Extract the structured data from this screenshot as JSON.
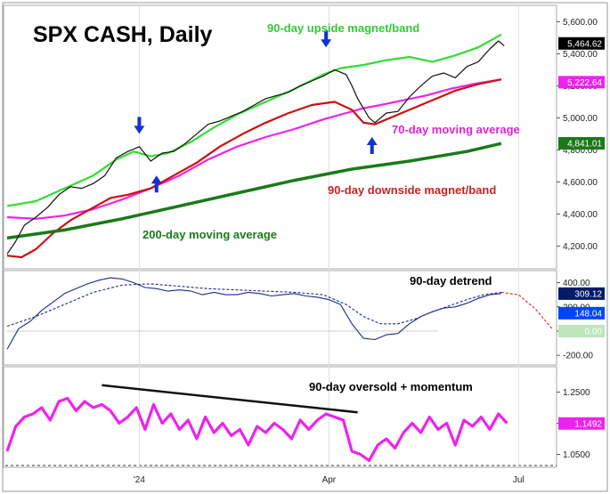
{
  "chart_data": [
    {
      "type": "line",
      "panel": "price",
      "title": "SPX CASH, Daily",
      "ylim": [
        4080,
        5680
      ],
      "yticks": [
        "5,600.00",
        "5,400.00",
        "5,200.00",
        "5,000.00",
        "4,800.00",
        "4,600.00",
        "4,400.00",
        "4,200.00"
      ],
      "ytick_values": [
        5600,
        5400,
        5200,
        5000,
        4800,
        4600,
        4400,
        4200
      ],
      "xlim": [
        0,
        190
      ],
      "x_labels": [
        {
          "x": 46,
          "label": "'24"
        },
        {
          "x": 112,
          "label": "Apr"
        },
        {
          "x": 178,
          "label": "Jul"
        }
      ],
      "price_tags": [
        {
          "text": "5,464.62",
          "value": 5464.62,
          "color": "#000000",
          "text_color": "#ffffff"
        },
        {
          "text": "5,222.64",
          "value": 5222.64,
          "color": "#ee22ee",
          "text_color": "#ffffff"
        },
        {
          "text": "4,841.01",
          "value": 4841.01,
          "color": "#1a7a1a",
          "text_color": "#ffffff"
        }
      ],
      "annotations": [
        {
          "text": "90-day upside magnet/band",
          "color": "#33cc33"
        },
        {
          "text": "70-day moving average",
          "color": "#dd22dd"
        },
        {
          "text": "90-day downside magnet/band",
          "color": "#cc2222"
        },
        {
          "text": "200-day moving average",
          "color": "#1a7a1a"
        }
      ],
      "arrows": [
        {
          "x": 46,
          "direction": "down",
          "price": 4900
        },
        {
          "x": 52,
          "direction": "up",
          "price": 4640
        },
        {
          "x": 111,
          "direction": "down",
          "price": 5440
        },
        {
          "x": 127,
          "direction": "up",
          "price": 4880
        }
      ],
      "series": [
        {
          "name": "90-day upside magnet/band",
          "color": "#33dd33",
          "x": [
            0,
            10,
            20,
            30,
            38,
            44,
            50,
            56,
            64,
            72,
            80,
            90,
            100,
            110,
            116,
            124,
            132,
            140,
            148,
            156,
            164,
            172
          ],
          "values": [
            4450,
            4480,
            4560,
            4640,
            4740,
            4790,
            4760,
            4780,
            4850,
            4940,
            5020,
            5100,
            5180,
            5270,
            5310,
            5330,
            5360,
            5380,
            5350,
            5390,
            5440,
            5520
          ]
        },
        {
          "name": "70-day moving average",
          "color": "#ee22ee",
          "x": [
            0,
            10,
            20,
            30,
            40,
            50,
            60,
            70,
            80,
            90,
            100,
            110,
            118,
            124,
            130,
            138,
            146,
            154,
            162,
            172
          ],
          "values": [
            4380,
            4370,
            4390,
            4430,
            4490,
            4560,
            4640,
            4740,
            4820,
            4880,
            4930,
            4990,
            5030,
            5060,
            5080,
            5110,
            5140,
            5180,
            5210,
            5240
          ]
        },
        {
          "name": "90-day downside magnet/band",
          "color": "#cc1111",
          "x": [
            0,
            5,
            10,
            16,
            22,
            30,
            36,
            42,
            50,
            58,
            66,
            74,
            82,
            90,
            98,
            106,
            114,
            120,
            124,
            128,
            132,
            140,
            148,
            156,
            164,
            172
          ],
          "values": [
            4140,
            4130,
            4180,
            4280,
            4360,
            4440,
            4500,
            4520,
            4560,
            4640,
            4720,
            4820,
            4900,
            4970,
            5030,
            5080,
            5100,
            5050,
            4970,
            4960,
            4990,
            5050,
            5110,
            5170,
            5210,
            5240
          ]
        },
        {
          "name": "200-day moving average",
          "color": "#1a7a1a",
          "x": [
            0,
            20,
            40,
            60,
            80,
            100,
            120,
            140,
            160,
            172
          ],
          "values": [
            4250,
            4300,
            4370,
            4450,
            4530,
            4610,
            4680,
            4730,
            4790,
            4840
          ]
        },
        {
          "name": "Price",
          "color": "#111111",
          "x": [
            0,
            3,
            6,
            10,
            14,
            18,
            22,
            26,
            30,
            34,
            38,
            42,
            46,
            50,
            54,
            58,
            62,
            66,
            70,
            74,
            78,
            82,
            86,
            90,
            94,
            98,
            102,
            106,
            110,
            114,
            118,
            120,
            122,
            124,
            126,
            128,
            132,
            136,
            140,
            144,
            148,
            152,
            156,
            160,
            164,
            168,
            171,
            173
          ],
          "values": [
            4150,
            4230,
            4330,
            4380,
            4440,
            4520,
            4570,
            4560,
            4590,
            4640,
            4750,
            4790,
            4820,
            4730,
            4780,
            4790,
            4840,
            4900,
            4960,
            4980,
            5010,
            5040,
            5080,
            5120,
            5140,
            5160,
            5200,
            5230,
            5260,
            5300,
            5270,
            5200,
            5120,
            5060,
            5000,
            4970,
            5030,
            5040,
            5130,
            5200,
            5260,
            5280,
            5250,
            5320,
            5350,
            5430,
            5480,
            5450
          ]
        }
      ]
    },
    {
      "type": "line",
      "panel": "detrend",
      "title": "90-day detrend",
      "ylim": [
        -250,
        470
      ],
      "yticks": [
        "400.00",
        "200.00",
        "0.00",
        "-200.00"
      ],
      "ytick_values": [
        400,
        200,
        0,
        -200
      ],
      "xlim": [
        0,
        190
      ],
      "price_tags": [
        {
          "text": "309.12",
          "value": 309.12,
          "color": "#001b6b",
          "text_color": "#ffffff"
        },
        {
          "text": "148.04",
          "value": 148.04,
          "color": "#0044ff",
          "text_color": "#ffffff"
        },
        {
          "text": "0.00",
          "value": 0,
          "color": "#bde6bd",
          "text_color": "#ffffff"
        }
      ],
      "series": [
        {
          "name": "Detrend",
          "color": "#1b2a8f",
          "x": [
            0,
            4,
            8,
            12,
            16,
            20,
            24,
            28,
            32,
            36,
            40,
            44,
            48,
            52,
            56,
            60,
            64,
            68,
            72,
            76,
            80,
            84,
            88,
            92,
            96,
            100,
            104,
            108,
            112,
            116,
            120,
            124,
            128,
            132,
            136,
            140,
            144,
            148,
            152,
            156,
            160,
            164,
            168,
            172
          ],
          "values": [
            -150,
            20,
            80,
            170,
            240,
            310,
            350,
            390,
            420,
            440,
            430,
            400,
            360,
            350,
            330,
            340,
            330,
            300,
            320,
            300,
            300,
            320,
            310,
            290,
            300,
            310,
            290,
            280,
            260,
            220,
            60,
            -60,
            -70,
            -30,
            -20,
            60,
            120,
            160,
            190,
            200,
            230,
            270,
            300,
            310
          ]
        },
        {
          "name": "Detrend cycle",
          "color": "#1b2a8f",
          "x": [
            0,
            10,
            20,
            30,
            40,
            50,
            60,
            70,
            80,
            90,
            100,
            110,
            118,
            124,
            130,
            136,
            142,
            148,
            154,
            160,
            166,
            172
          ],
          "values": [
            40,
            120,
            220,
            320,
            380,
            390,
            370,
            350,
            340,
            330,
            320,
            300,
            220,
            120,
            60,
            60,
            100,
            160,
            210,
            260,
            300,
            320
          ]
        },
        {
          "name": "Projection",
          "color": "#dd2222",
          "x": [
            172,
            178,
            184,
            190
          ],
          "values": [
            320,
            300,
            180,
            10
          ]
        }
      ]
    },
    {
      "type": "line",
      "panel": "momentum",
      "title": "90-day oversold + momentum",
      "ylim": [
        1.02,
        1.32
      ],
      "yticks": [
        "1.2500",
        "1.1500",
        "1.0500"
      ],
      "ytick_values": [
        1.25,
        1.15,
        1.05
      ],
      "xlim": [
        0,
        190
      ],
      "price_tags": [
        {
          "text": "1.1492",
          "value": 1.1492,
          "color": "#ee22ee",
          "text_color": "#ffffff"
        }
      ],
      "trendline": {
        "x": [
          33,
          122
        ],
        "values": [
          1.272,
          1.185
        ]
      },
      "series": [
        {
          "name": "Momentum",
          "color": "#ee22ee",
          "x": [
            0,
            3,
            6,
            9,
            12,
            15,
            18,
            21,
            24,
            27,
            30,
            33,
            36,
            39,
            42,
            45,
            48,
            51,
            54,
            57,
            60,
            63,
            66,
            69,
            72,
            75,
            78,
            81,
            84,
            87,
            90,
            93,
            96,
            99,
            102,
            105,
            108,
            111,
            114,
            117,
            120,
            123,
            126,
            129,
            132,
            135,
            138,
            141,
            144,
            147,
            150,
            153,
            156,
            159,
            162,
            165,
            168,
            171,
            174
          ],
          "values": [
            1.06,
            1.14,
            1.17,
            1.18,
            1.2,
            1.16,
            1.22,
            1.23,
            1.19,
            1.22,
            1.2,
            1.21,
            1.19,
            1.15,
            1.17,
            1.2,
            1.13,
            1.21,
            1.15,
            1.18,
            1.13,
            1.16,
            1.1,
            1.17,
            1.12,
            1.15,
            1.11,
            1.13,
            1.08,
            1.14,
            1.12,
            1.15,
            1.13,
            1.1,
            1.16,
            1.13,
            1.16,
            1.18,
            1.17,
            1.16,
            1.06,
            1.05,
            1.03,
            1.08,
            1.1,
            1.07,
            1.12,
            1.15,
            1.12,
            1.17,
            1.13,
            1.15,
            1.08,
            1.16,
            1.14,
            1.17,
            1.13,
            1.18,
            1.15
          ]
        }
      ]
    }
  ]
}
